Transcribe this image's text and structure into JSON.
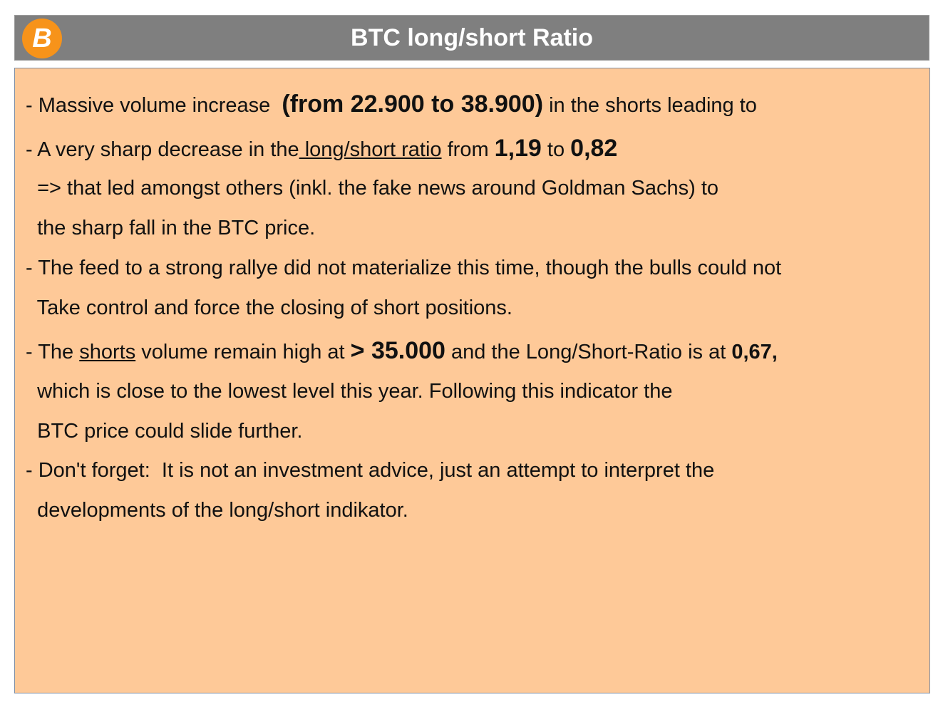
{
  "header": {
    "title": "BTC long/short Ratio",
    "logo_icon": "bitcoin-icon",
    "bar_color": "#7f7f7f"
  },
  "content": {
    "background_color": "#fec998",
    "lines": [
      [
        {
          "t": "- Massive volume increase  "
        },
        {
          "t": "(from 22.900 to 38.900)",
          "b": true,
          "big": true
        },
        {
          "t": " in the shorts leading to"
        }
      ],
      [
        {
          "t": "- A very sharp decrease in the"
        },
        {
          "t": " long/short ratio",
          "u": true
        },
        {
          "t": " from "
        },
        {
          "t": "1,19",
          "b": true,
          "big": true
        },
        {
          "t": " to "
        },
        {
          "t": "0,82",
          "b": true,
          "big": true
        }
      ],
      [
        {
          "t": "  => that led amongst others (inkl. the fake news around Goldman Sachs) to"
        }
      ],
      [
        {
          "t": "  the sharp fall in the BTC price."
        }
      ],
      [
        {
          "t": "- The feed to a strong rallye did not materialize this time, though the bulls could not"
        }
      ],
      [
        {
          "t": "  Take control and force the closing of short positions."
        }
      ],
      [
        {
          "t": "- The "
        },
        {
          "t": "shorts",
          "u": true
        },
        {
          "t": " volume remain high at "
        },
        {
          "t": "> 35.000",
          "b": true,
          "big": true
        },
        {
          "t": " and the Long/Short-Ratio is at "
        },
        {
          "t": "0,67,",
          "b": true
        }
      ],
      [
        {
          "t": "  which is close to the lowest level this year. Following this indicator the"
        }
      ],
      [
        {
          "t": "  BTC price could slide further."
        }
      ],
      [
        {
          "t": "- Don't forget:  It is not an investment advice, just an attempt to interpret the"
        }
      ],
      [
        {
          "t": "  developments of the long/short indikator."
        }
      ]
    ]
  }
}
